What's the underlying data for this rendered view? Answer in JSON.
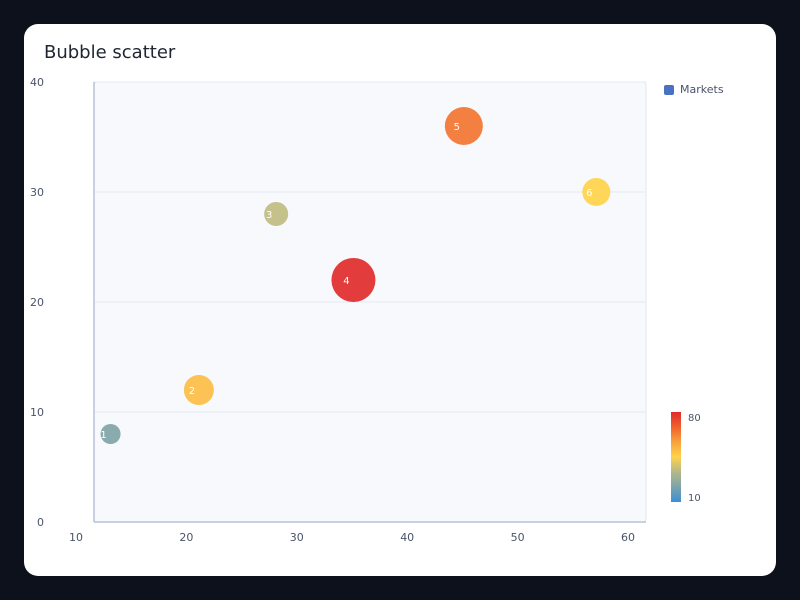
{
  "chart_data": {
    "type": "scatter",
    "title": "Bubble scatter",
    "xlabel": "",
    "ylabel": "",
    "xlim": [
      10,
      60
    ],
    "ylim": [
      0,
      40
    ],
    "x_ticks": [
      "10",
      "20",
      "30",
      "40",
      "50",
      "60"
    ],
    "y_ticks": [
      "0",
      "10",
      "20",
      "30",
      "40"
    ],
    "grid": true,
    "legend_position": "top-right",
    "series": [
      {
        "name": "Markets",
        "color": "#4a72c2",
        "points": [
          {
            "label": "1",
            "x": 11.5,
            "y": 8,
            "size": 18,
            "color_value": 22
          },
          {
            "label": "2",
            "x": 19.5,
            "y": 12,
            "size": 28,
            "color_value": 50
          },
          {
            "label": "3",
            "x": 26.5,
            "y": 28,
            "size": 22,
            "color_value": 35
          },
          {
            "label": "4",
            "x": 33.5,
            "y": 22,
            "size": 42,
            "color_value": 80
          },
          {
            "label": "5",
            "x": 43.5,
            "y": 36,
            "size": 36,
            "color_value": 65
          },
          {
            "label": "6",
            "x": 55.5,
            "y": 30,
            "size": 26,
            "color_value": 45
          }
        ]
      }
    ],
    "colorbar": {
      "min": 10,
      "max": 80,
      "min_label": "10",
      "max_label": "80",
      "colors": [
        "#3b8fd9",
        "#7da3a8",
        "#b4b88a",
        "#ffd24a",
        "#f7a23b",
        "#f0612d",
        "#e02b2b"
      ]
    }
  }
}
